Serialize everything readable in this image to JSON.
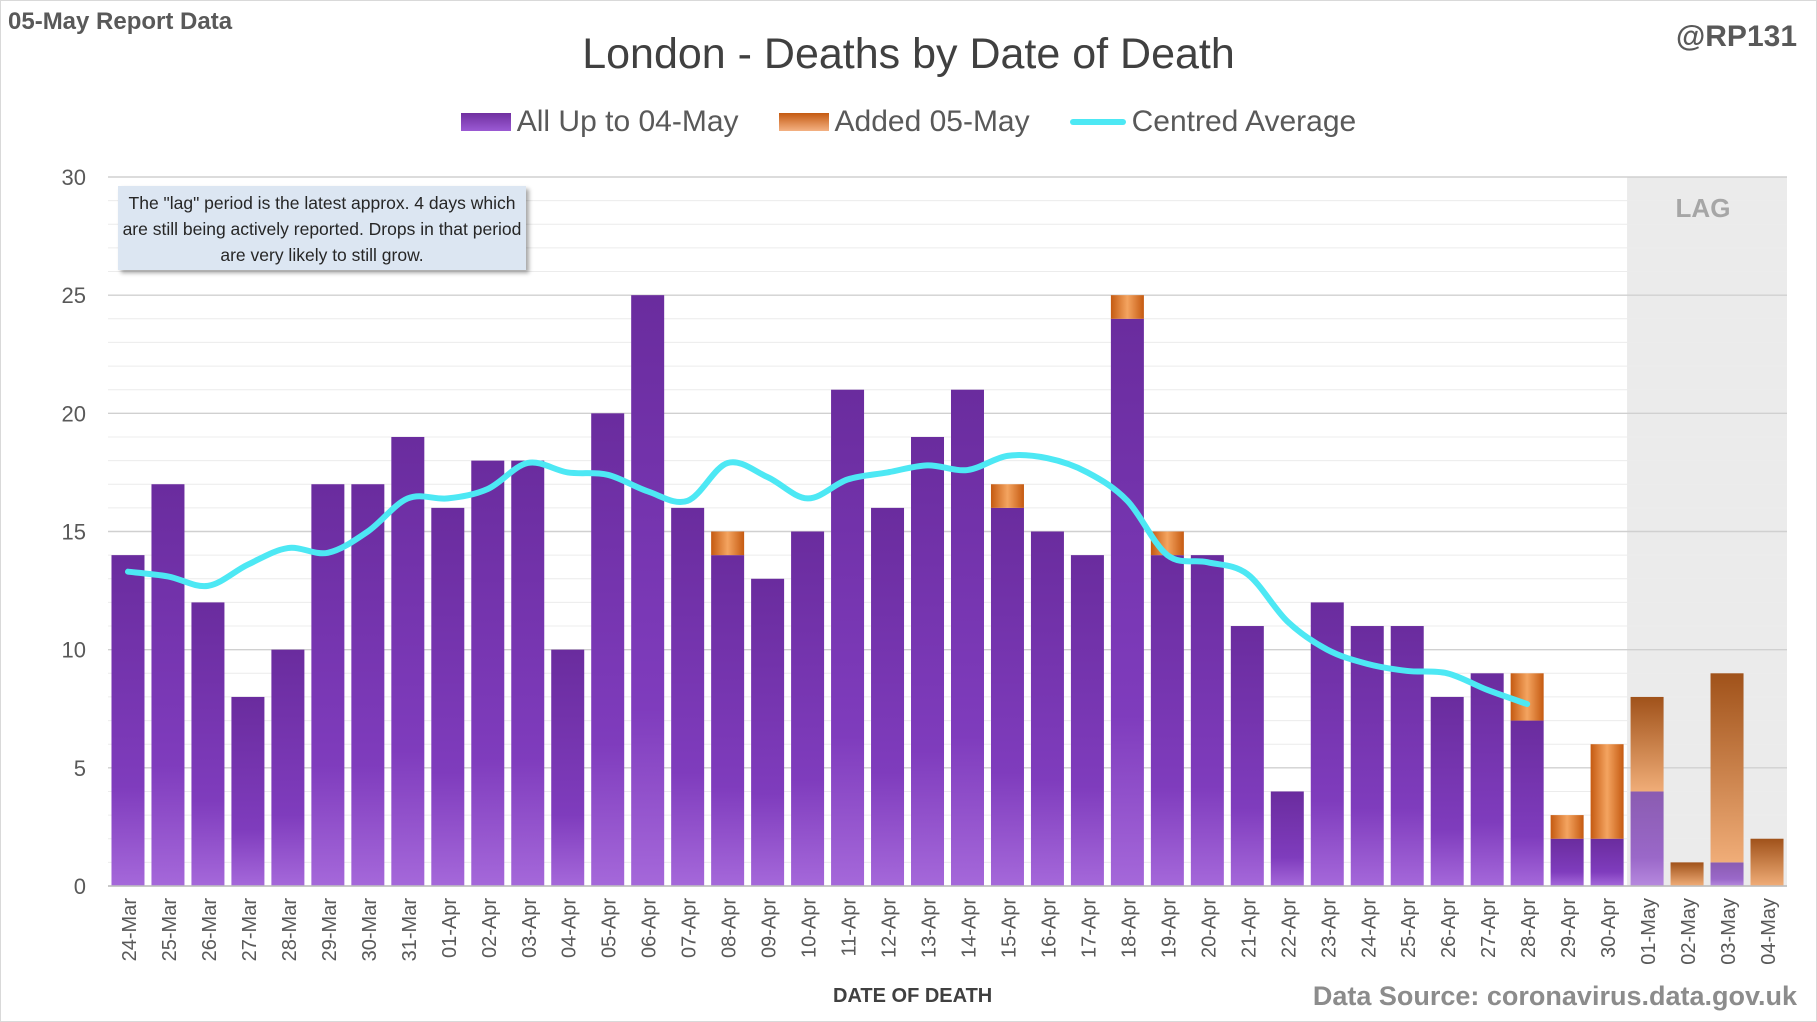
{
  "header": {
    "report_label": "05-May Report Data",
    "handle": "@RP131",
    "source": "Data Source: coronavirus.data.gov.uk"
  },
  "annotation": {
    "note": "The \"lag\" period is the latest approx. 4 days which are still being actively reported.  Drops in that period are very likely to still grow.",
    "lag_label": "LAG"
  },
  "colors": {
    "base": "#7030a0",
    "added": "#e07b39",
    "average": "#4de8f4",
    "lag_shade": "#ebebeb"
  },
  "chart_data": {
    "type": "bar",
    "title": "London - Deaths by Date of Death",
    "xlabel": "DATE OF DEATH",
    "ylabel": "",
    "ylim": [
      0,
      30
    ],
    "yticks": [
      0,
      5,
      10,
      15,
      20,
      25,
      30
    ],
    "grid": true,
    "legend_position": "top",
    "stacked": true,
    "categories": [
      "24-Mar",
      "25-Mar",
      "26-Mar",
      "27-Mar",
      "28-Mar",
      "29-Mar",
      "30-Mar",
      "31-Mar",
      "01-Apr",
      "02-Apr",
      "03-Apr",
      "04-Apr",
      "05-Apr",
      "06-Apr",
      "07-Apr",
      "08-Apr",
      "09-Apr",
      "10-Apr",
      "11-Apr",
      "12-Apr",
      "13-Apr",
      "14-Apr",
      "15-Apr",
      "16-Apr",
      "17-Apr",
      "18-Apr",
      "19-Apr",
      "20-Apr",
      "21-Apr",
      "22-Apr",
      "23-Apr",
      "24-Apr",
      "25-Apr",
      "26-Apr",
      "27-Apr",
      "28-Apr",
      "29-Apr",
      "30-Apr",
      "01-May",
      "02-May",
      "03-May",
      "04-May"
    ],
    "series": [
      {
        "name": "All Up to 04-May",
        "values": [
          14,
          17,
          12,
          8,
          10,
          17,
          17,
          19,
          16,
          18,
          18,
          10,
          20,
          25,
          16,
          14,
          13,
          15,
          21,
          16,
          19,
          21,
          16,
          15,
          14,
          24,
          14,
          14,
          11,
          4,
          12,
          11,
          11,
          8,
          9,
          7,
          2,
          2,
          4,
          0,
          1,
          0
        ]
      },
      {
        "name": "Added 05-May",
        "values": [
          0,
          0,
          0,
          0,
          0,
          0,
          0,
          0,
          0,
          0,
          0,
          0,
          0,
          0,
          0,
          1,
          0,
          0,
          0,
          0,
          0,
          0,
          1,
          0,
          0,
          1,
          1,
          0,
          0,
          0,
          0,
          0,
          0,
          0,
          0,
          2,
          1,
          4,
          4,
          1,
          8,
          2
        ]
      },
      {
        "name": "Centred Average",
        "type": "line",
        "values": [
          13.3,
          13.1,
          12.7,
          13.6,
          14.3,
          14.1,
          15.0,
          16.4,
          16.4,
          16.8,
          17.9,
          17.5,
          17.4,
          16.7,
          16.3,
          17.9,
          17.3,
          16.4,
          17.2,
          17.5,
          17.8,
          17.6,
          18.2,
          18.1,
          17.5,
          16.3,
          14.0,
          13.7,
          13.2,
          11.2,
          10.0,
          9.4,
          9.1,
          9.0,
          8.3,
          7.7,
          null,
          null,
          null,
          null,
          null,
          null
        ]
      }
    ],
    "lag_period": [
      "01-May",
      "02-May",
      "03-May",
      "04-May"
    ]
  }
}
